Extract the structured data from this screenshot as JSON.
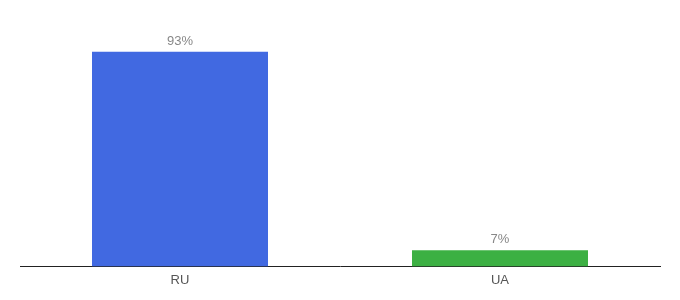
{
  "chart_data": {
    "type": "bar",
    "categories": [
      "RU",
      "UA"
    ],
    "values": [
      93,
      7
    ],
    "value_labels": [
      "93%",
      "7%"
    ],
    "colors": [
      "#4169E1",
      "#3CB043"
    ],
    "ylim": [
      0,
      105
    ],
    "grid": false,
    "data_labels": true,
    "tick_labels": "x"
  }
}
